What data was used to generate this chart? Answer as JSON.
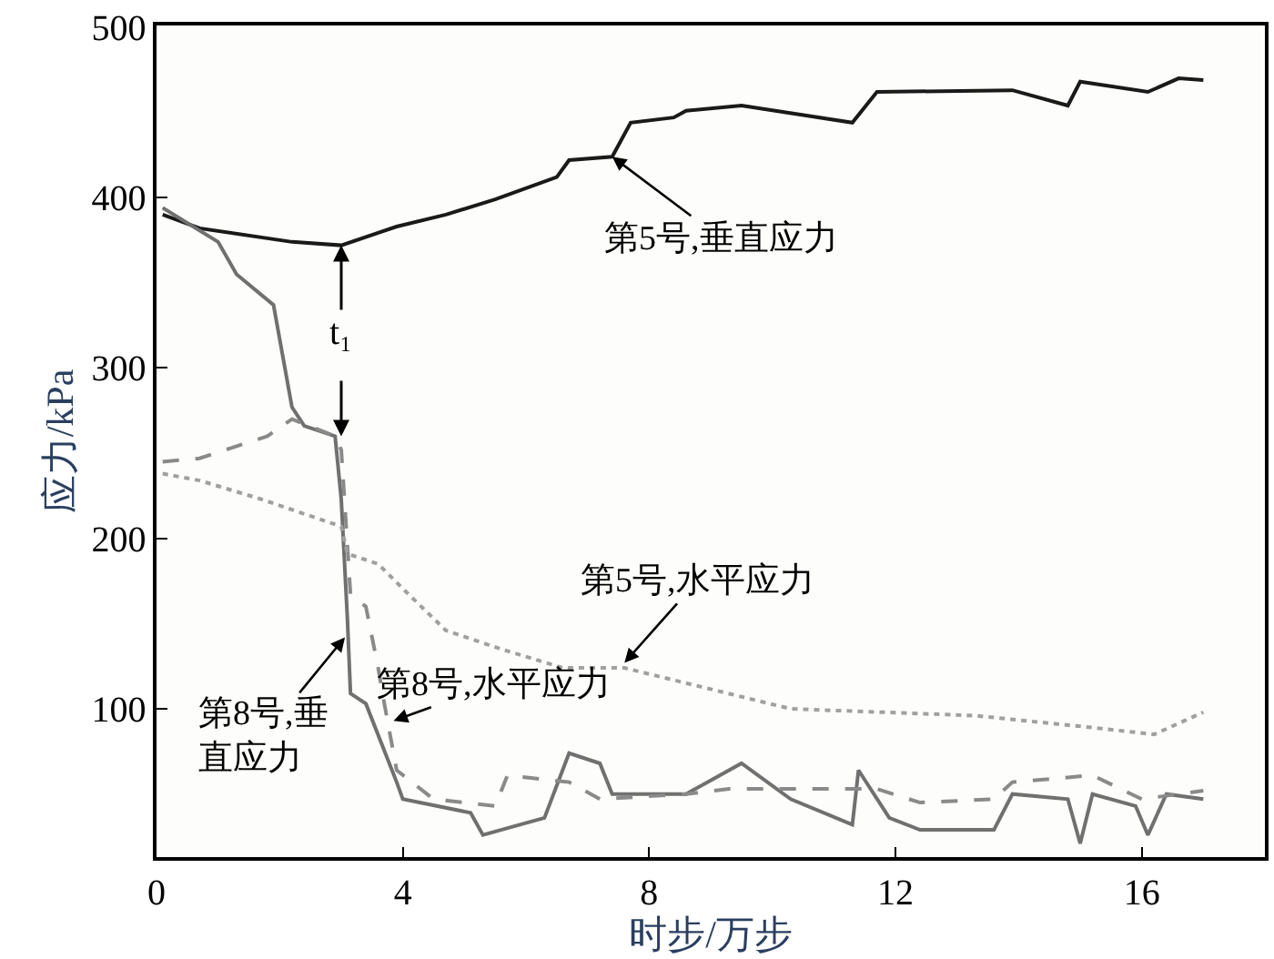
{
  "chart_data": {
    "type": "line",
    "xlabel": "时步/万步",
    "ylabel": "应力/kPa",
    "xlim": [
      0,
      18
    ],
    "xticks": [
      0,
      4,
      8,
      12,
      16
    ],
    "ylim": [
      13,
      501
    ],
    "yticks": [
      100,
      200,
      300,
      400,
      500
    ],
    "marker": "none",
    "series": [
      {
        "color": "#1a1a1a",
        "line_style": "solid",
        "x": [
          0.1,
          0.7,
          2.2,
          3.0,
          3.9,
          4.7,
          5.5,
          6.5,
          6.7,
          7.4,
          7.7,
          8.4,
          8.6,
          9.5,
          11.3,
          11.7,
          13.9,
          14.8,
          15.0,
          16.1,
          16.6,
          17.0
        ],
        "values": [
          390,
          382,
          374,
          372,
          383,
          390,
          399,
          412,
          422,
          424,
          444,
          447,
          451,
          454,
          444,
          462,
          463,
          454,
          468,
          462,
          470,
          469
        ]
      },
      {
        "color": "#707070",
        "line_style": "solid",
        "x": [
          0.1,
          1.0,
          1.3,
          1.9,
          2.2,
          2.4,
          2.9,
          3.0,
          3.1,
          3.15,
          3.4,
          3.9,
          4.0,
          5.1,
          5.3,
          6.3,
          6.7,
          7.2,
          7.4,
          8.6,
          9.5,
          10.3,
          11.3,
          11.4,
          11.9,
          12.4,
          13.6,
          13.9,
          14.8,
          15.0,
          15.2,
          15.9,
          16.1,
          16.4,
          17.0
        ],
        "values": [
          394,
          374,
          355,
          337,
          277,
          266,
          260,
          223,
          153,
          109,
          103,
          57,
          47,
          39,
          26,
          36,
          74,
          68,
          50,
          50,
          68,
          47,
          32,
          64,
          36,
          29,
          29,
          50,
          47,
          21,
          50,
          43,
          26,
          50,
          47
        ]
      },
      {
        "color": "#8a8a8a",
        "line_style": "dashed",
        "x": [
          0.1,
          0.7,
          1.8,
          2.2,
          2.9,
          3.0,
          3.1,
          3.15,
          3.4,
          3.6,
          3.7,
          3.9,
          4.5,
          5.5,
          5.7,
          6.7,
          7.2,
          8.6,
          9.3,
          11.7,
          12.4,
          13.6,
          13.9,
          15.2,
          16.0,
          17.0
        ],
        "values": [
          245,
          247,
          260,
          270,
          260,
          252,
          196,
          167,
          160,
          124,
          103,
          64,
          47,
          43,
          61,
          57,
          47,
          50,
          53,
          53,
          45,
          47,
          57,
          61,
          47,
          52
        ]
      },
      {
        "color": "#a0a0a0",
        "line_style": "dotted",
        "x": [
          0.1,
          0.7,
          1.7,
          3.0,
          3.1,
          3.6,
          4.1,
          4.7,
          5.6,
          6.6,
          7.6,
          10.3,
          13.3,
          15.2,
          16.2,
          17.0
        ],
        "values": [
          238,
          234,
          223,
          207,
          191,
          185,
          167,
          146,
          135,
          124,
          124,
          100,
          96,
          89,
          85,
          98
        ]
      }
    ],
    "annotations": [
      {
        "text": "第5号,垂直应力",
        "x": 7.4,
        "y": 424
      },
      {
        "text": "第5号,水平应力",
        "x": 7.6,
        "y": 127
      },
      {
        "text": "第8号,水平应力",
        "x": 3.85,
        "y": 93
      },
      {
        "text": "第8号,垂直应力",
        "x": 3.06,
        "y": 142
      },
      {
        "text": "t₁",
        "x": 3.0,
        "y": 372
      }
    ]
  }
}
